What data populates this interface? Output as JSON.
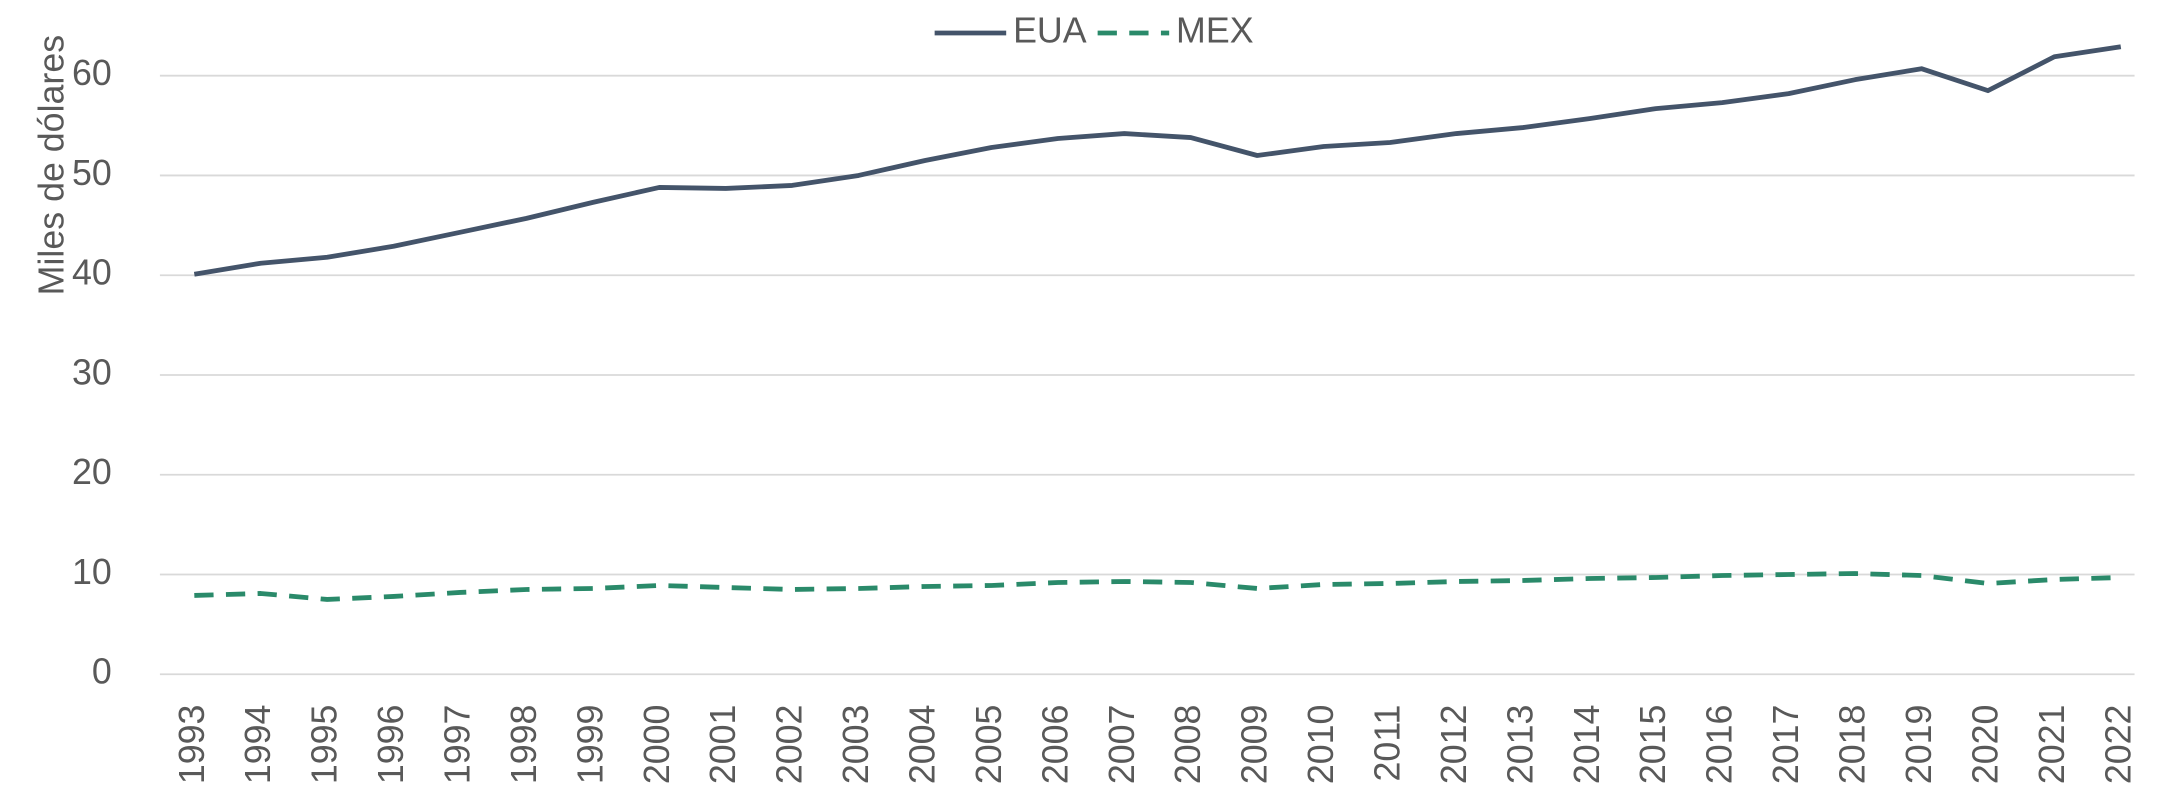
{
  "chart_data": {
    "type": "line",
    "y_label": "Miles de dólares",
    "categories": [
      "1993",
      "1994",
      "1995",
      "1996",
      "1997",
      "1998",
      "1999",
      "2000",
      "2001",
      "2002",
      "2003",
      "2004",
      "2005",
      "2006",
      "2007",
      "2008",
      "2009",
      "2010",
      "2011",
      "2012",
      "2013",
      "2014",
      "2015",
      "2016",
      "2017",
      "2018",
      "2019",
      "2020",
      "2021",
      "2022"
    ],
    "series": [
      {
        "name": "EUA",
        "color": "#44546a",
        "dash": false,
        "values": [
          40.1,
          41.2,
          41.8,
          42.9,
          44.3,
          45.7,
          47.3,
          48.8,
          48.7,
          49.0,
          50.0,
          51.5,
          52.8,
          53.7,
          54.2,
          53.8,
          52.0,
          52.9,
          53.3,
          54.2,
          54.8,
          55.7,
          56.7,
          57.3,
          58.2,
          59.6,
          60.7,
          58.5,
          61.9,
          62.9
        ]
      },
      {
        "name": "MEX",
        "color": "#2a8a6a",
        "dash": true,
        "values": [
          7.9,
          8.1,
          7.5,
          7.8,
          8.2,
          8.5,
          8.6,
          8.9,
          8.7,
          8.5,
          8.6,
          8.8,
          8.9,
          9.2,
          9.3,
          9.2,
          8.6,
          9.0,
          9.1,
          9.3,
          9.4,
          9.6,
          9.7,
          9.9,
          10.0,
          10.1,
          9.9,
          9.1,
          9.5,
          9.7
        ]
      }
    ],
    "ylim": [
      0,
      60
    ],
    "yticks": [
      0,
      10,
      20,
      30,
      40,
      50,
      60
    ],
    "grid": true,
    "legend": "top"
  }
}
